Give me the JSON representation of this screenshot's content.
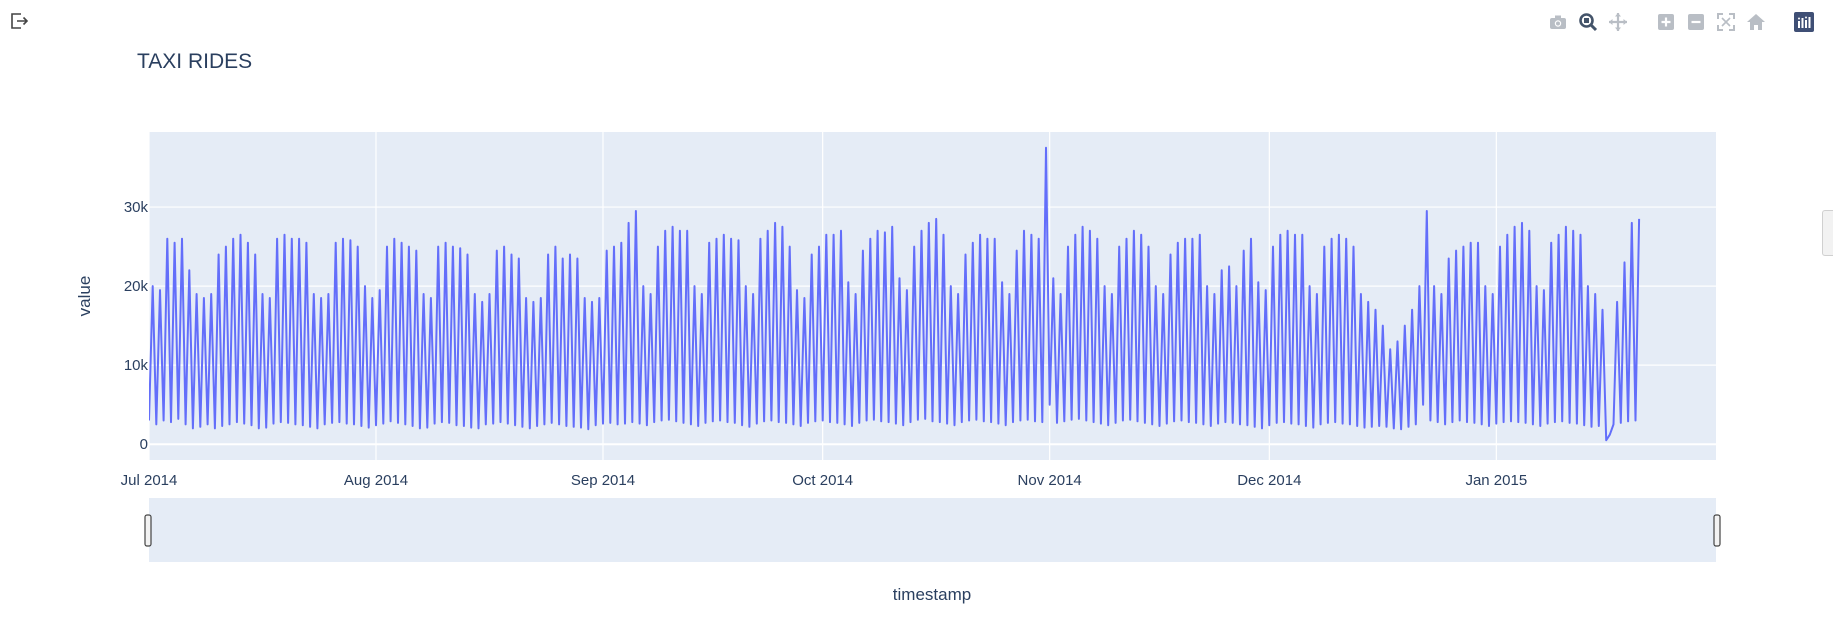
{
  "chart_data": {
    "type": "line",
    "title": "TAXI RIDES",
    "xlabel": "timestamp",
    "ylabel": "value",
    "x_range": [
      "2014-07-01",
      "2015-01-31"
    ],
    "ylim": [
      -2000,
      39500
    ],
    "y_ticks": [
      {
        "value": 0,
        "label": "0"
      },
      {
        "value": 10000,
        "label": "10k"
      },
      {
        "value": 20000,
        "label": "20k"
      },
      {
        "value": 30000,
        "label": "30k"
      }
    ],
    "x_ticks": [
      {
        "date": "2014-07-01",
        "label": "Jul 2014"
      },
      {
        "date": "2014-08-01",
        "label": "Aug 2014"
      },
      {
        "date": "2014-09-01",
        "label": "Sep 2014"
      },
      {
        "date": "2014-10-01",
        "label": "Oct 2014"
      },
      {
        "date": "2014-11-01",
        "label": "Nov 2014"
      },
      {
        "date": "2014-12-01",
        "label": "Dec 2014"
      },
      {
        "date": "2015-01-01",
        "label": "Jan 2015"
      }
    ],
    "grid": true,
    "legend": "none",
    "rangeslider": true,
    "line_color": "#636efa",
    "plot_bg": "#e5ecf6",
    "series": [
      {
        "start": "2014-07-01",
        "step_hours": 12,
        "values": [
          3000,
          20000,
          2500,
          19500,
          3000,
          26000,
          2800,
          25500,
          3200,
          26000,
          2500,
          22000,
          2000,
          19000,
          2200,
          18500,
          2500,
          19000,
          2000,
          24000,
          2300,
          25000,
          2500,
          26000,
          2800,
          26500,
          2600,
          25500,
          2400,
          24000,
          2000,
          19000,
          2100,
          18500,
          2600,
          26000,
          2800,
          26500,
          2700,
          26000,
          2500,
          26000,
          2400,
          25500,
          2200,
          19000,
          2000,
          18500,
          2500,
          19000,
          2700,
          25500,
          2800,
          26000,
          2600,
          25800,
          2500,
          25000,
          2300,
          20000,
          2100,
          18500,
          2400,
          19500,
          2600,
          25000,
          2900,
          26000,
          2700,
          25500,
          2500,
          25000,
          2300,
          24500,
          2000,
          19000,
          2100,
          18500,
          2600,
          25000,
          2800,
          25500,
          2700,
          25000,
          2400,
          24800,
          2300,
          24000,
          2100,
          19000,
          2000,
          18000,
          2500,
          19000,
          2600,
          24500,
          2800,
          25000,
          2600,
          24000,
          2400,
          23500,
          2200,
          18500,
          2000,
          18000,
          2300,
          18500,
          2500,
          24000,
          2700,
          25000,
          2500,
          23500,
          2300,
          24000,
          2200,
          23500,
          2100,
          18500,
          1900,
          18000,
          2400,
          18500,
          2600,
          24500,
          2700,
          25000,
          2500,
          25500,
          2600,
          28000,
          2800,
          29500,
          2600,
          20000,
          2400,
          19000,
          2800,
          25000,
          3000,
          27000,
          3100,
          27500,
          2900,
          27000,
          2700,
          27000,
          2500,
          20000,
          2300,
          19000,
          2700,
          25500,
          2900,
          26000,
          3000,
          26500,
          2800,
          26000,
          2700,
          25800,
          2400,
          20000,
          2200,
          19000,
          2600,
          26000,
          2900,
          27000,
          3000,
          28000,
          2800,
          27500,
          2700,
          25000,
          2500,
          19500,
          2300,
          18500,
          2700,
          24000,
          2900,
          25000,
          3000,
          26500,
          2800,
          26500,
          2700,
          27000,
          2500,
          20500,
          2300,
          19000,
          2700,
          24500,
          3000,
          26000,
          3100,
          27000,
          2900,
          26800,
          2800,
          27500,
          2600,
          21000,
          2400,
          19500,
          2800,
          25000,
          3100,
          27000,
          3200,
          28000,
          2900,
          28500,
          2800,
          26500,
          2600,
          20000,
          2400,
          19000,
          2800,
          24000,
          3000,
          25500,
          3100,
          26500,
          2900,
          26000,
          2800,
          26000,
          2600,
          20500,
          2400,
          19000,
          2800,
          24500,
          3000,
          27000,
          3100,
          26500,
          2900,
          26000,
          2800,
          37500,
          5000,
          21000,
          2700,
          19000,
          2900,
          25000,
          3100,
          26500,
          3200,
          27500,
          3000,
          27000,
          2800,
          26000,
          2600,
          20000,
          2400,
          19000,
          2700,
          25000,
          3000,
          26000,
          3100,
          27000,
          2900,
          26500,
          2700,
          25000,
          2500,
          20000,
          2300,
          19000,
          2600,
          24000,
          2900,
          25500,
          3000,
          26000,
          2800,
          26000,
          2700,
          26500,
          2500,
          20000,
          2300,
          19000,
          2600,
          22000,
          2800,
          22500,
          2700,
          20000,
          2500,
          24500,
          2400,
          26000,
          2200,
          20500,
          2000,
          19500,
          2400,
          25000,
          2700,
          26500,
          2800,
          27000,
          2600,
          26500,
          2500,
          26500,
          2300,
          20000,
          2100,
          19000,
          2500,
          25000,
          2700,
          26000,
          2800,
          26500,
          2600,
          26000,
          2500,
          25000,
          2300,
          19000,
          2100,
          18000,
          2200,
          17000,
          2300,
          15000,
          2200,
          12000,
          2000,
          13000,
          1900,
          15000,
          2200,
          17000,
          2500,
          20000,
          5000,
          29500,
          3000,
          20000,
          2800,
          19000,
          2500,
          23500,
          2800,
          24500,
          3000,
          25000,
          2800,
          25500,
          2700,
          25500,
          2500,
          20000,
          2300,
          19000,
          2600,
          25000,
          2800,
          26500,
          2900,
          27500,
          2800,
          28000,
          2700,
          27000,
          2500,
          20000,
          2300,
          19500,
          2600,
          25500,
          2800,
          26500,
          2900,
          27500,
          2700,
          27000,
          2600,
          26500,
          2400,
          20000,
          2200,
          19000,
          2300,
          17000,
          500,
          1200,
          2500,
          18000,
          2700,
          23000,
          2900,
          28000,
          3000,
          28500
        ]
      }
    ]
  },
  "modebar": {
    "buttons": [
      "camera-icon",
      "zoom-icon",
      "pan-icon",
      "zoom-in-icon",
      "zoom-out-icon",
      "autoscale-icon",
      "reset-axes-icon",
      "plotly-logo-icon"
    ]
  }
}
